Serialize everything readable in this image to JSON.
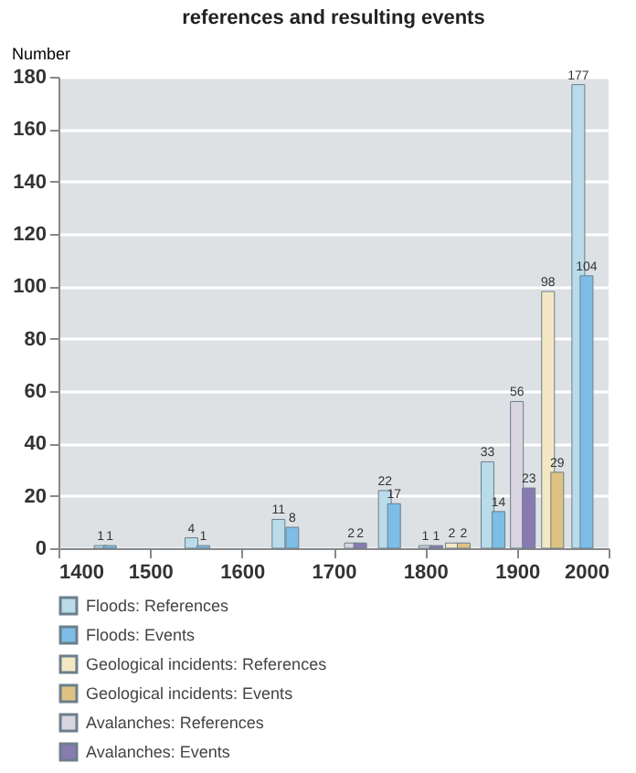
{
  "chart_data": {
    "type": "bar",
    "title": "references and resulting events",
    "ylabel": "Number",
    "xlim": [
      1400,
      2000
    ],
    "xticks": [
      1400,
      1500,
      1600,
      1700,
      1800,
      1900,
      2000
    ],
    "ylim": [
      0,
      180
    ],
    "yticks": [
      0,
      20,
      40,
      60,
      80,
      100,
      120,
      140,
      160,
      180
    ],
    "grid": "y",
    "legend": "bottom",
    "data_labels": true,
    "series": [
      {
        "name": "Floods: References",
        "color": "#b9dbea",
        "x": [
          1446,
          1545,
          1640,
          1756,
          1868,
          1967
        ],
        "values": [
          1,
          4,
          11,
          22,
          33,
          177
        ]
      },
      {
        "name": "Floods: Events",
        "color": "#7dbde6",
        "x": [
          1456,
          1558,
          1655,
          1766,
          1880,
          1976
        ],
        "values": [
          1,
          1,
          8,
          17,
          14,
          104
        ]
      },
      {
        "name": "Geological incidents: References",
        "color": "#f4e8c4",
        "x": [
          1829,
          1934
        ],
        "values": [
          2,
          98
        ]
      },
      {
        "name": "Geological incidents: Events",
        "color": "#dfc283",
        "x": [
          1842,
          1944
        ],
        "values": [
          2,
          29
        ]
      },
      {
        "name": "Avalanches: References",
        "color": "#d8d5e0",
        "x": [
          1719,
          1800,
          1900
        ],
        "values": [
          2,
          1,
          56
        ]
      },
      {
        "name": "Avalanches: Events",
        "color": "#8a7ab2",
        "x": [
          1729,
          1812,
          1913
        ],
        "values": [
          2,
          1,
          23
        ]
      }
    ]
  }
}
